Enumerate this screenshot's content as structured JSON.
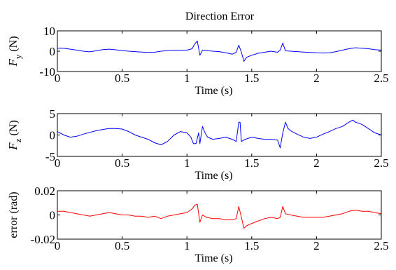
{
  "chart_data": [
    {
      "type": "line",
      "title": "Direction Error",
      "xlabel": "Time (s)",
      "ylabel": "F_y (N)",
      "ylabel_main": "F",
      "ylabel_sub": "y",
      "ylabel_unit": "(N)",
      "xlim": [
        0,
        2.5
      ],
      "ylim": [
        -10,
        10
      ],
      "xticks": [
        0,
        0.5,
        1,
        1.5,
        2,
        2.5
      ],
      "xtick_labels": [
        "0",
        "0.5",
        "1",
        "1.5",
        "2",
        "2.5"
      ],
      "yticks": [
        -10,
        0,
        10
      ],
      "ytick_labels": [
        "-10",
        "0",
        "10"
      ],
      "grid": false,
      "color": "#0000ff",
      "series": [
        {
          "x": [
            0,
            0.05,
            0.1,
            0.15,
            0.2,
            0.25,
            0.3,
            0.35,
            0.4,
            0.45,
            0.5,
            0.55,
            0.6,
            0.65,
            0.7,
            0.75,
            0.8,
            0.85,
            0.9,
            0.95,
            1.0,
            1.04,
            1.06,
            1.08,
            1.1,
            1.12,
            1.15,
            1.2,
            1.25,
            1.3,
            1.35,
            1.38,
            1.4,
            1.42,
            1.44,
            1.46,
            1.5,
            1.55,
            1.6,
            1.65,
            1.7,
            1.72,
            1.74,
            1.76,
            1.8,
            1.85,
            1.9,
            1.95,
            2.0,
            2.05,
            2.1,
            2.15,
            2.2,
            2.25,
            2.3,
            2.35,
            2.4,
            2.45,
            2.5
          ],
          "y": [
            1.5,
            1.4,
            1.0,
            0.5,
            0.0,
            -0.3,
            0.2,
            0.8,
            1.0,
            0.7,
            0.3,
            0.0,
            -0.2,
            -0.4,
            -0.6,
            -0.5,
            0.0,
            0.3,
            0.4,
            0.5,
            0.5,
            1.2,
            3.5,
            5.0,
            -2.0,
            0.5,
            0.3,
            0.0,
            -0.2,
            -0.8,
            -1.5,
            -0.5,
            3.0,
            -0.5,
            -5.0,
            -3.0,
            -2.0,
            -1.0,
            -0.5,
            0.0,
            -0.5,
            0.5,
            4.0,
            0.2,
            0.0,
            -0.2,
            -0.4,
            -0.6,
            -0.8,
            -0.9,
            -0.8,
            -0.2,
            0.5,
            1.2,
            1.7,
            1.5,
            1.2,
            0.8,
            0.5
          ]
        }
      ]
    },
    {
      "type": "line",
      "xlabel": "Time (s)",
      "ylabel": "F_z (N)",
      "ylabel_main": "F",
      "ylabel_sub": "z",
      "ylabel_unit": "(N)",
      "xlim": [
        0,
        2.5
      ],
      "ylim": [
        -5,
        5
      ],
      "xticks": [
        0,
        0.5,
        1,
        1.5,
        2,
        2.5
      ],
      "xtick_labels": [
        "0",
        "0.5",
        "1",
        "1.5",
        "2",
        "2.5"
      ],
      "yticks": [
        -5,
        0,
        5
      ],
      "ytick_labels": [
        "-5",
        "0",
        "5"
      ],
      "grid": false,
      "color": "#0000ff",
      "series": [
        {
          "x": [
            0,
            0.05,
            0.1,
            0.15,
            0.2,
            0.25,
            0.3,
            0.35,
            0.4,
            0.45,
            0.5,
            0.55,
            0.6,
            0.65,
            0.7,
            0.75,
            0.8,
            0.85,
            0.9,
            0.95,
            1.0,
            1.03,
            1.05,
            1.07,
            1.09,
            1.1,
            1.12,
            1.14,
            1.16,
            1.2,
            1.25,
            1.3,
            1.35,
            1.38,
            1.4,
            1.41,
            1.42,
            1.45,
            1.5,
            1.55,
            1.6,
            1.65,
            1.7,
            1.72,
            1.74,
            1.76,
            1.78,
            1.8,
            1.85,
            1.9,
            1.95,
            2.0,
            2.05,
            2.1,
            2.15,
            2.2,
            2.25,
            2.28,
            2.3,
            2.35,
            2.4,
            2.45,
            2.5
          ],
          "y": [
            0.8,
            0.0,
            -0.5,
            -0.3,
            0.2,
            0.6,
            1.0,
            1.3,
            1.5,
            1.5,
            1.4,
            0.8,
            0.0,
            -0.5,
            -1.0,
            -1.8,
            -2.3,
            -1.5,
            0.0,
            0.8,
            0.5,
            -0.5,
            -2.0,
            -2.0,
            0.5,
            -2.0,
            2.0,
            0.5,
            -0.5,
            -1.0,
            -0.8,
            -0.5,
            -1.0,
            -1.5,
            3.0,
            3.0,
            -1.5,
            -1.0,
            -0.5,
            -0.8,
            -1.0,
            -1.0,
            -1.2,
            -3.0,
            0.5,
            3.0,
            1.5,
            1.0,
            0.2,
            -0.5,
            -0.8,
            -0.5,
            0.2,
            0.8,
            1.5,
            2.0,
            3.0,
            3.5,
            3.0,
            2.5,
            1.5,
            0.5,
            0.0
          ]
        }
      ]
    },
    {
      "type": "line",
      "xlabel": "Time (s)",
      "ylabel": "error (rad)",
      "xlim": [
        0,
        2.5
      ],
      "ylim": [
        -0.02,
        0.02
      ],
      "xticks": [
        0,
        0.5,
        1,
        1.5,
        2,
        2.5
      ],
      "xtick_labels": [
        "0",
        "0.5",
        "1",
        "1.5",
        "2",
        "2.5"
      ],
      "yticks": [
        -0.02,
        0,
        0.02
      ],
      "ytick_labels": [
        "-0.02",
        "0",
        "0.02"
      ],
      "grid": false,
      "color": "#ff0000",
      "series": [
        {
          "x": [
            0,
            0.05,
            0.1,
            0.15,
            0.2,
            0.25,
            0.3,
            0.35,
            0.4,
            0.45,
            0.5,
            0.55,
            0.6,
            0.65,
            0.7,
            0.75,
            0.8,
            0.85,
            0.9,
            0.95,
            1.0,
            1.04,
            1.06,
            1.08,
            1.1,
            1.12,
            1.15,
            1.2,
            1.25,
            1.3,
            1.35,
            1.38,
            1.4,
            1.42,
            1.44,
            1.46,
            1.5,
            1.55,
            1.6,
            1.65,
            1.7,
            1.72,
            1.74,
            1.76,
            1.8,
            1.85,
            1.9,
            1.95,
            2.0,
            2.05,
            2.1,
            2.15,
            2.2,
            2.25,
            2.3,
            2.35,
            2.4,
            2.45,
            2.5
          ],
          "y": [
            0.003,
            0.003,
            0.002,
            0.001,
            0.0,
            -0.001,
            0.0,
            0.001,
            0.002,
            0.001,
            0.0,
            0.0,
            -0.001,
            -0.001,
            -0.002,
            -0.001,
            -0.003,
            -0.001,
            0.0,
            0.001,
            0.002,
            0.005,
            0.008,
            0.009,
            -0.006,
            0.0,
            -0.002,
            -0.003,
            -0.003,
            -0.004,
            -0.004,
            -0.003,
            0.007,
            -0.002,
            -0.011,
            -0.009,
            -0.007,
            -0.005,
            -0.003,
            -0.002,
            -0.003,
            -0.002,
            0.007,
            0.001,
            0.0,
            -0.001,
            -0.002,
            -0.002,
            -0.002,
            -0.002,
            -0.001,
            0.0,
            0.001,
            0.003,
            0.004,
            0.003,
            0.003,
            0.002,
            0.001
          ]
        }
      ]
    }
  ]
}
